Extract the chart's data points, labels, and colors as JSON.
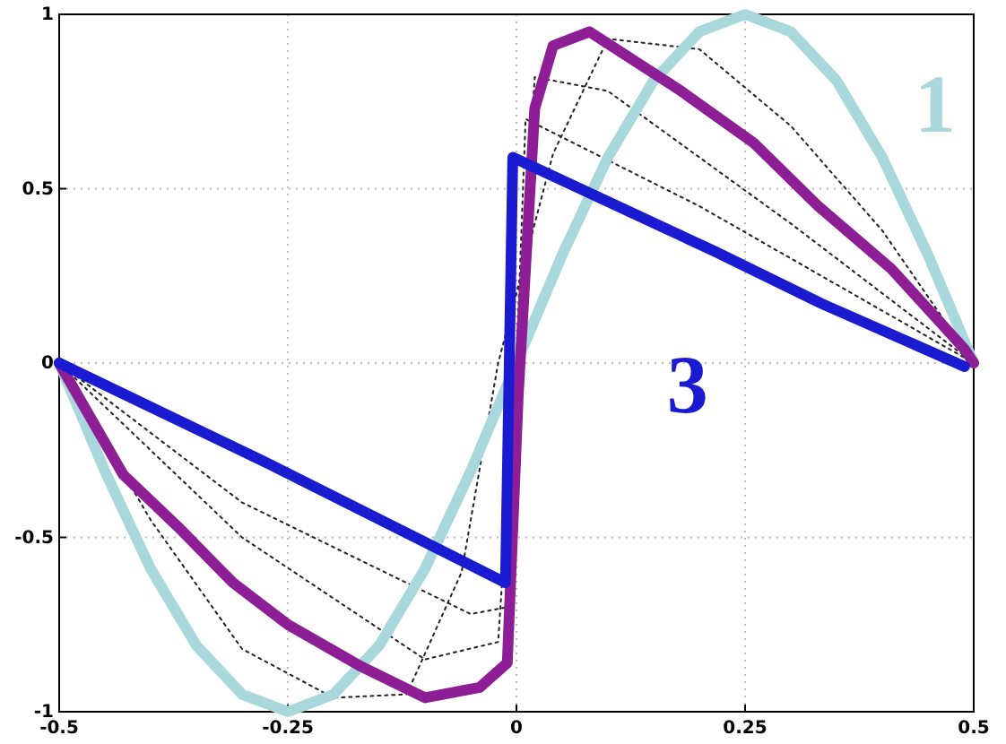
{
  "chart_data": {
    "type": "line",
    "xlim": [
      -0.5,
      0.5
    ],
    "ylim": [
      -1,
      1
    ],
    "xticks": [
      -0.5,
      -0.25,
      0,
      0.25,
      0.5
    ],
    "yticks": [
      -1,
      -0.5,
      0,
      0.5,
      1
    ],
    "grid": true,
    "marker": "none",
    "series": [
      {
        "color": "#222222",
        "line_style": "dotted",
        "x": [
          -0.5,
          -0.4,
          -0.3,
          -0.2,
          -0.12,
          -0.06,
          -0.02,
          0.04,
          0.1,
          0.2,
          0.3,
          0.4,
          0.5
        ],
        "values": [
          0,
          -0.45,
          -0.82,
          -0.96,
          -0.95,
          -0.6,
          0,
          0.6,
          0.93,
          0.9,
          0.68,
          0.38,
          0
        ]
      },
      {
        "color": "#222222",
        "line_style": "dotted",
        "x": [
          -0.5,
          -0.3,
          -0.1,
          -0.02,
          0,
          0.02,
          0.1,
          0.3,
          0.5
        ],
        "values": [
          0,
          -0.5,
          -0.85,
          -0.8,
          0,
          0.82,
          0.78,
          0.4,
          0
        ]
      },
      {
        "color": "#222222",
        "line_style": "dotted",
        "x": [
          -0.5,
          -0.3,
          -0.05,
          -0.01,
          0,
          0.01,
          0.2,
          0.5
        ],
        "values": [
          0,
          -0.4,
          -0.72,
          -0.7,
          0,
          0.7,
          0.45,
          0
        ]
      },
      {
        "name": "1",
        "color": "#a8d8dc",
        "line_style": "solid",
        "x": [
          -0.5,
          -0.45,
          -0.4,
          -0.35,
          -0.3,
          -0.25,
          -0.2,
          -0.15,
          -0.1,
          -0.05,
          0,
          0.05,
          0.1,
          0.15,
          0.2,
          0.25,
          0.3,
          0.35,
          0.4,
          0.45,
          0.5
        ],
        "values": [
          0,
          -0.31,
          -0.59,
          -0.81,
          -0.95,
          -1,
          -0.95,
          -0.81,
          -0.59,
          -0.31,
          0,
          0.31,
          0.59,
          0.81,
          0.95,
          1,
          0.95,
          0.81,
          0.59,
          0.31,
          0
        ]
      },
      {
        "color": "#8e1e96",
        "line_style": "solid",
        "x": [
          -0.5,
          -0.43,
          -0.37,
          -0.31,
          -0.25,
          -0.17,
          -0.1,
          -0.04,
          -0.01,
          0.002,
          0.02,
          0.04,
          0.08,
          0.18,
          0.26,
          0.33,
          0.41,
          0.49,
          0.5
        ],
        "values": [
          0,
          -0.32,
          -0.47,
          -0.63,
          -0.75,
          -0.87,
          -0.96,
          -0.93,
          -0.86,
          -0.09,
          0.73,
          0.91,
          0.95,
          0.78,
          0.63,
          0.45,
          0.27,
          0.04,
          0
        ]
      },
      {
        "name": "3",
        "color": "#1a1ad0",
        "line_style": "solid",
        "x": [
          -0.5,
          -0.27,
          -0.012,
          -0.004,
          0.217,
          0.334,
          0.49
        ],
        "values": [
          0,
          -0.29,
          -0.63,
          0.59,
          0.32,
          0.17,
          -0.01
        ]
      }
    ]
  }
}
